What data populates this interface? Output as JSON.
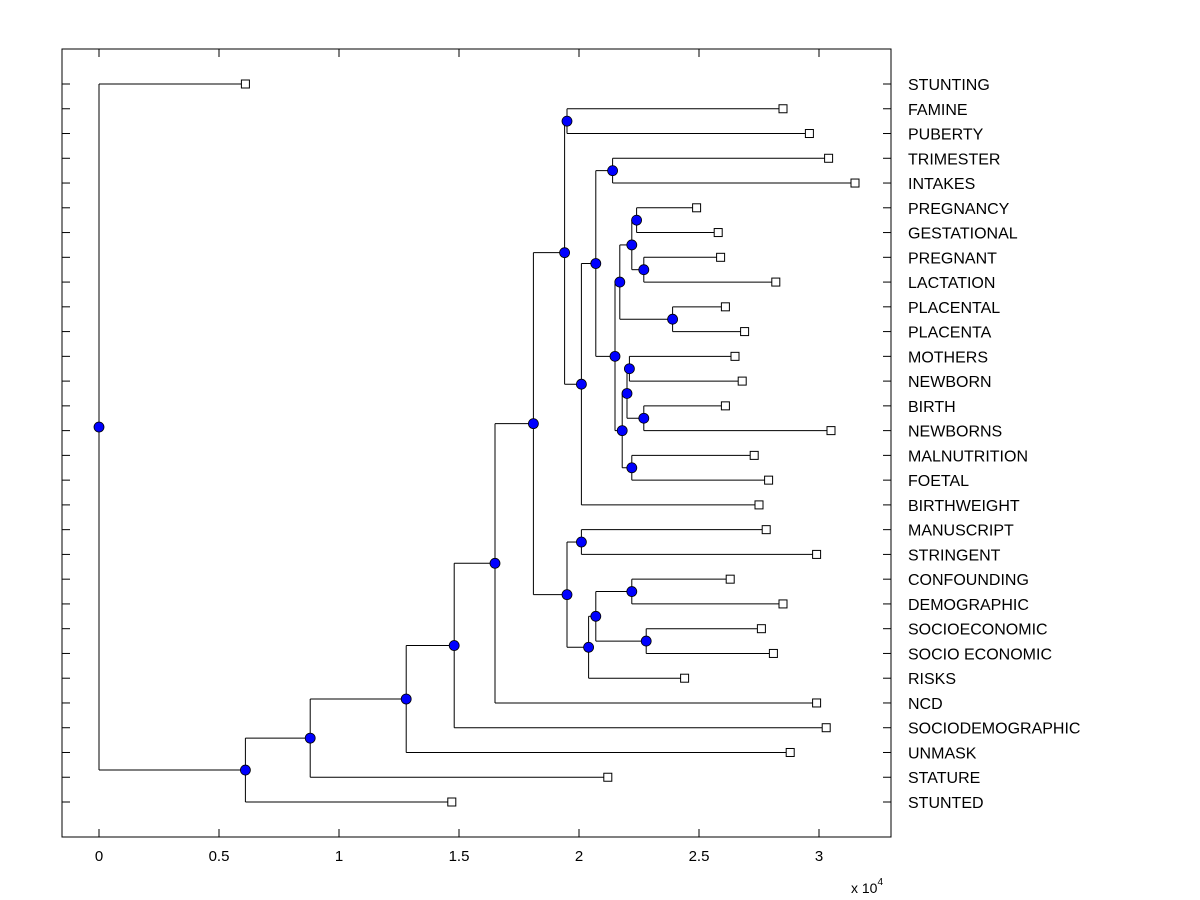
{
  "chart_data": {
    "type": "dendrogram",
    "title": "",
    "xlabel": "",
    "ylabel": "",
    "x_multiplier": {
      "base": "x 10",
      "exponent": "4"
    },
    "xlim": [
      -0.154,
      3.3
    ],
    "xticks": [
      0,
      0.5,
      1,
      1.5,
      2,
      2.5,
      3
    ],
    "xtick_labels": [
      "0",
      "0.5",
      "1",
      "1.5",
      "2",
      "2.5",
      "3"
    ],
    "grid": false,
    "leaf_marker": "open-square",
    "node_marker": "filled-circle",
    "node_color": "#0000ff",
    "line_color": "#000000",
    "leaves": [
      {
        "id": "L1",
        "label": "STUNTING",
        "x": 0.61
      },
      {
        "id": "L2",
        "label": "FAMINE",
        "x": 2.85
      },
      {
        "id": "L3",
        "label": "PUBERTY",
        "x": 2.96
      },
      {
        "id": "L4",
        "label": "TRIMESTER",
        "x": 3.04
      },
      {
        "id": "L5",
        "label": "INTAKES",
        "x": 3.15
      },
      {
        "id": "L6",
        "label": "PREGNANCY",
        "x": 2.49
      },
      {
        "id": "L7",
        "label": "GESTATIONAL",
        "x": 2.58
      },
      {
        "id": "L8",
        "label": "PREGNANT",
        "x": 2.59
      },
      {
        "id": "L9",
        "label": "LACTATION",
        "x": 2.82
      },
      {
        "id": "L10",
        "label": "PLACENTAL",
        "x": 2.61
      },
      {
        "id": "L11",
        "label": "PLACENTA",
        "x": 2.69
      },
      {
        "id": "L12",
        "label": "MOTHERS",
        "x": 2.65
      },
      {
        "id": "L13",
        "label": "NEWBORN",
        "x": 2.68
      },
      {
        "id": "L14",
        "label": "BIRTH",
        "x": 2.61
      },
      {
        "id": "L15",
        "label": "NEWBORNS",
        "x": 3.05
      },
      {
        "id": "L16",
        "label": "MALNUTRITION",
        "x": 2.73
      },
      {
        "id": "L17",
        "label": "FOETAL",
        "x": 2.79
      },
      {
        "id": "L18",
        "label": "BIRTHWEIGHT",
        "x": 2.75
      },
      {
        "id": "L19",
        "label": "MANUSCRIPT",
        "x": 2.78
      },
      {
        "id": "L20",
        "label": "STRINGENT",
        "x": 2.99
      },
      {
        "id": "L21",
        "label": "CONFOUNDING",
        "x": 2.63
      },
      {
        "id": "L22",
        "label": "DEMOGRAPHIC",
        "x": 2.85
      },
      {
        "id": "L23",
        "label": "SOCIOECONOMIC",
        "x": 2.76
      },
      {
        "id": "L24",
        "label": "SOCIO ECONOMIC",
        "x": 2.81
      },
      {
        "id": "L25",
        "label": "RISKS",
        "x": 2.44
      },
      {
        "id": "L26",
        "label": "NCD",
        "x": 2.99
      },
      {
        "id": "L27",
        "label": "SOCIODEMOGRAPHIC",
        "x": 3.03
      },
      {
        "id": "L28",
        "label": "UNMASK",
        "x": 2.88
      },
      {
        "id": "L29",
        "label": "STATURE",
        "x": 2.12
      },
      {
        "id": "L30",
        "label": "STUNTED",
        "x": 1.47
      }
    ],
    "nodes": [
      {
        "id": "N_root",
        "x": 0.0,
        "children": [
          "L1",
          "N_a"
        ]
      },
      {
        "id": "N_a",
        "x": 0.61,
        "children": [
          "N_b",
          "L30"
        ]
      },
      {
        "id": "N_b",
        "x": 0.88,
        "children": [
          "N_c",
          "L29"
        ]
      },
      {
        "id": "N_c",
        "x": 1.28,
        "children": [
          "N_d",
          "L28"
        ]
      },
      {
        "id": "N_d",
        "x": 1.48,
        "children": [
          "N_e",
          "L27"
        ]
      },
      {
        "id": "N_e",
        "x": 1.65,
        "children": [
          "N_f",
          "L26"
        ]
      },
      {
        "id": "N_f",
        "x": 1.81,
        "children": [
          "N_g",
          "N_s"
        ]
      },
      {
        "id": "N_g",
        "x": 1.94,
        "children": [
          "N_h",
          "N_i"
        ]
      },
      {
        "id": "N_h",
        "x": 1.95,
        "children": [
          "L2",
          "L3"
        ]
      },
      {
        "id": "N_i",
        "x": 2.01,
        "children": [
          "N_j",
          "L18"
        ]
      },
      {
        "id": "N_j",
        "x": 2.07,
        "children": [
          "N_k",
          "N_n"
        ]
      },
      {
        "id": "N_k",
        "x": 2.14,
        "children": [
          "L4",
          "L5"
        ]
      },
      {
        "id": "N_n",
        "x": 2.15,
        "children": [
          "N_o",
          "N_p"
        ]
      },
      {
        "id": "N_o",
        "x": 2.17,
        "children": [
          "N_q",
          "N_r"
        ]
      },
      {
        "id": "N_q",
        "x": 2.22,
        "children": [
          "N_q1",
          "N_q2"
        ]
      },
      {
        "id": "N_q1",
        "x": 2.24,
        "children": [
          "L6",
          "L7"
        ]
      },
      {
        "id": "N_q2",
        "x": 2.27,
        "children": [
          "L8",
          "L9"
        ]
      },
      {
        "id": "N_r",
        "x": 2.39,
        "children": [
          "L10",
          "L11"
        ]
      },
      {
        "id": "N_p",
        "x": 2.18,
        "children": [
          "N_p1",
          "N_p4"
        ]
      },
      {
        "id": "N_p1",
        "x": 2.2,
        "children": [
          "N_p2",
          "N_p3"
        ]
      },
      {
        "id": "N_p2",
        "x": 2.21,
        "children": [
          "L12",
          "L13"
        ]
      },
      {
        "id": "N_p3",
        "x": 2.27,
        "children": [
          "L14",
          "L15"
        ]
      },
      {
        "id": "N_p4",
        "x": 2.22,
        "children": [
          "L16",
          "L17"
        ]
      },
      {
        "id": "N_s",
        "x": 1.95,
        "children": [
          "N_t",
          "N_u"
        ]
      },
      {
        "id": "N_t",
        "x": 2.01,
        "children": [
          "L19",
          "L20"
        ]
      },
      {
        "id": "N_u",
        "x": 2.04,
        "children": [
          "N_v",
          "L25"
        ]
      },
      {
        "id": "N_v",
        "x": 2.07,
        "children": [
          "N_w",
          "N_x"
        ]
      },
      {
        "id": "N_w",
        "x": 2.22,
        "children": [
          "L21",
          "L22"
        ]
      },
      {
        "id": "N_x",
        "x": 2.28,
        "children": [
          "L23",
          "L24"
        ]
      }
    ]
  }
}
